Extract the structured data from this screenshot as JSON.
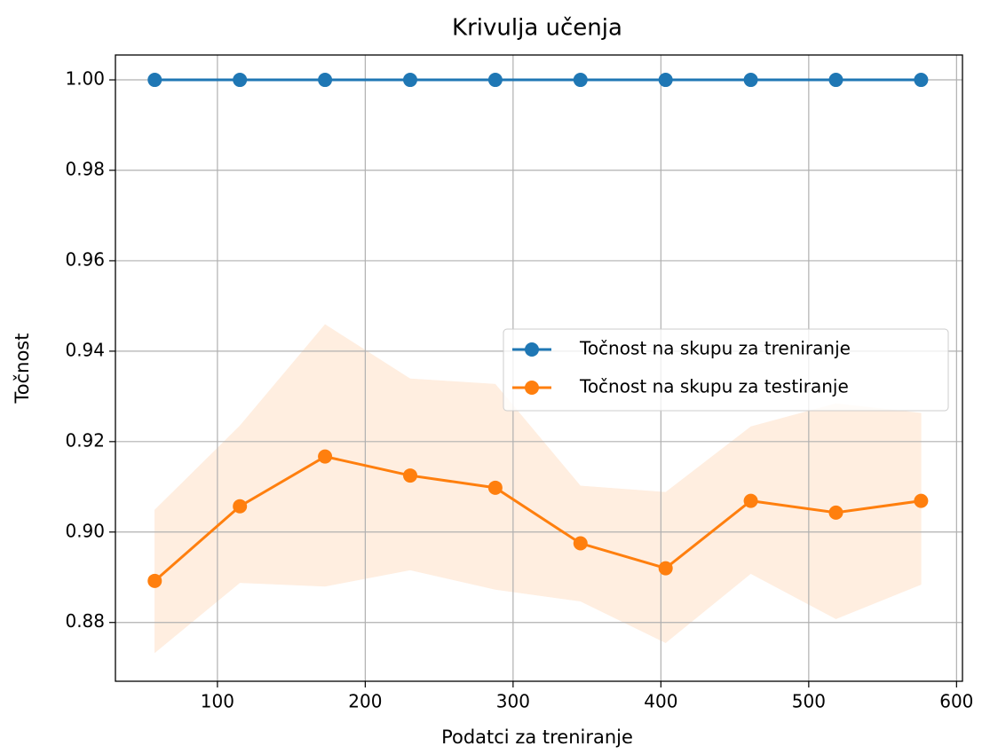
{
  "chart_data": {
    "type": "line",
    "title": "Krivulja učenja",
    "xlabel": "Podatci za treniranje",
    "ylabel": "Točnost",
    "x": [
      57.6,
      115.2,
      172.8,
      230.4,
      288,
      345.6,
      403.2,
      460.8,
      518.4,
      576
    ],
    "series": [
      {
        "name": "Točnost na skupu za treniranje",
        "color": "#1f77b4",
        "values": [
          1,
          1,
          1,
          1,
          1,
          1,
          1,
          1,
          1,
          1
        ]
      },
      {
        "name": "Točnost na skupu za testiranje",
        "color": "#ff7f0e",
        "values": [
          0.8892,
          0.9057,
          0.9167,
          0.9125,
          0.9098,
          0.8975,
          0.892,
          0.9069,
          0.9043,
          0.9069
        ],
        "band_color": "#ffeee0",
        "upper": [
          0.9049,
          0.9235,
          0.9459,
          0.9339,
          0.9327,
          0.9102,
          0.9088,
          0.9233,
          0.9284,
          0.9263
        ],
        "lower": [
          0.8733,
          0.8888,
          0.888,
          0.8916,
          0.8873,
          0.8847,
          0.8755,
          0.8908,
          0.8808,
          0.8884
        ]
      }
    ],
    "xlim": [
      31,
      604
    ],
    "ylim": [
      0.867,
      1.0055
    ],
    "xticks": [
      100,
      200,
      300,
      400,
      500,
      600
    ],
    "yticks": [
      {
        "value": 0.88,
        "label": "0.88"
      },
      {
        "value": 0.9,
        "label": "0.90"
      },
      {
        "value": 0.92,
        "label": "0.92"
      },
      {
        "value": 0.94,
        "label": "0.94"
      },
      {
        "value": 0.96,
        "label": "0.96"
      },
      {
        "value": 0.98,
        "label": "0.98"
      },
      {
        "value": 1,
        "label": "1.00"
      }
    ],
    "grid": true,
    "legend": "center right"
  }
}
